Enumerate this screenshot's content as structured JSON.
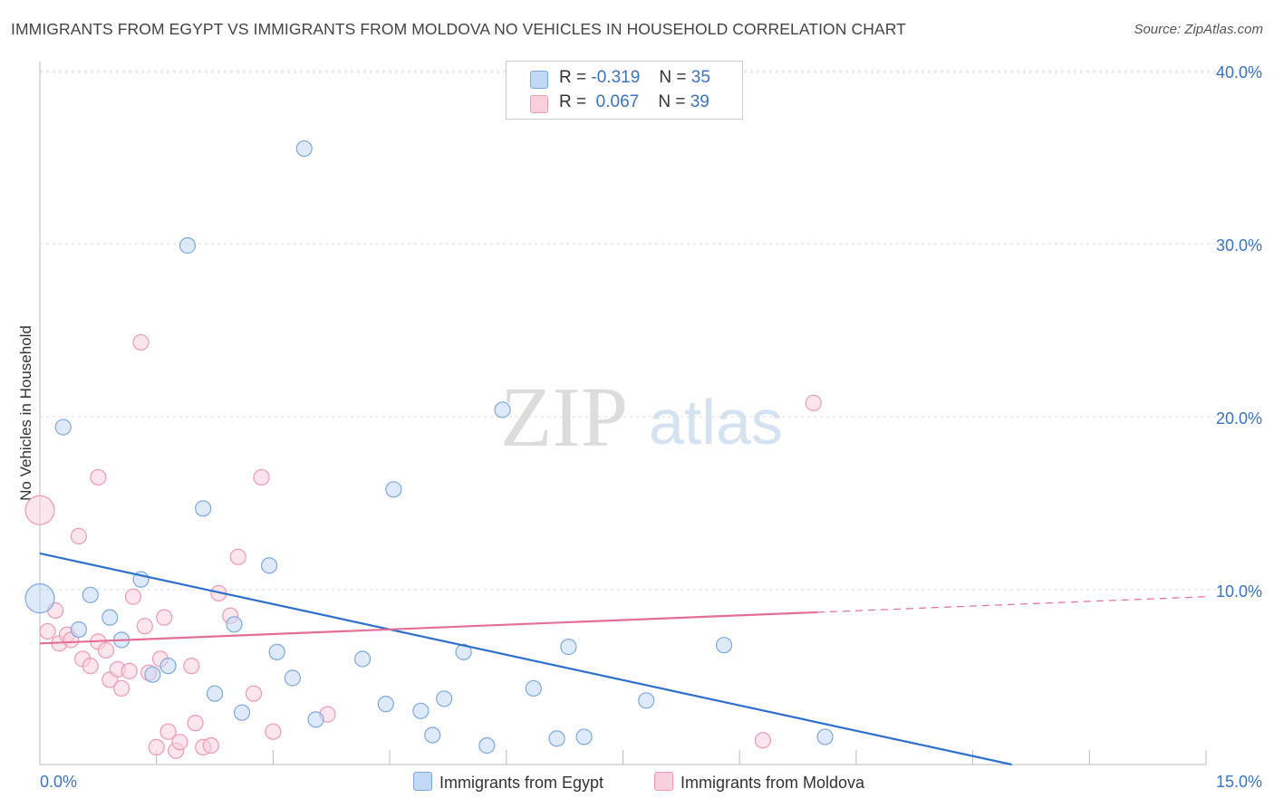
{
  "title": "IMMIGRANTS FROM EGYPT VS IMMIGRANTS FROM MOLDOVA NO VEHICLES IN HOUSEHOLD CORRELATION CHART",
  "source": "Source: ZipAtlas.com",
  "watermark": {
    "zip": "ZIP",
    "atlas": "atlas"
  },
  "legend": {
    "rows": [
      {
        "r_label": "R =",
        "r_value": "-0.319",
        "n_label": "N =",
        "n_value": "35",
        "color": "#b8d2f5",
        "border": "#7ea8e0"
      },
      {
        "r_label": "R =",
        "r_value": "0.067",
        "n_label": "N =",
        "n_value": "39",
        "color": "#f9c6d5",
        "border": "#ef9ab3"
      }
    ]
  },
  "bottom_legend": {
    "egypt": "Immigrants from Egypt",
    "moldova": "Immigrants from Moldova"
  },
  "chart_data": {
    "type": "scatter",
    "title": "IMMIGRANTS FROM EGYPT VS IMMIGRANTS FROM MOLDOVA NO VEHICLES IN HOUSEHOLD CORRELATION CHART",
    "xlabel": "",
    "ylabel": "No Vehicles in Household",
    "xlim": [
      0,
      15
    ],
    "ylim": [
      0,
      40
    ],
    "x_ticks": [
      "0.0%",
      "15.0%"
    ],
    "y_ticks": [
      {
        "value": 10,
        "label": "10.0%"
      },
      {
        "value": 20,
        "label": "20.0%"
      },
      {
        "value": 30,
        "label": "30.0%"
      },
      {
        "value": 40,
        "label": "40.0%"
      }
    ],
    "grid": true,
    "colors": {
      "egypt_fill": "#c2d8f5",
      "egypt_stroke": "#7ea8e0",
      "egypt_line": "#2f6fce",
      "moldova_fill": "#fad0dd",
      "moldova_stroke": "#ef9ab3",
      "moldova_line": "#e46f95",
      "tick_text": "#3b73c4"
    },
    "series": [
      {
        "name": "Immigrants from Egypt",
        "points": [
          {
            "x": 0.0,
            "y": 9.6,
            "big": true
          },
          {
            "x": 0.3,
            "y": 19.5
          },
          {
            "x": 0.5,
            "y": 7.8
          },
          {
            "x": 0.65,
            "y": 9.8
          },
          {
            "x": 0.9,
            "y": 8.5
          },
          {
            "x": 1.05,
            "y": 7.2
          },
          {
            "x": 1.3,
            "y": 10.7
          },
          {
            "x": 1.45,
            "y": 5.2
          },
          {
            "x": 1.65,
            "y": 5.7
          },
          {
            "x": 1.9,
            "y": 30.0
          },
          {
            "x": 2.1,
            "y": 14.8
          },
          {
            "x": 2.25,
            "y": 4.1
          },
          {
            "x": 2.5,
            "y": 8.1
          },
          {
            "x": 2.6,
            "y": 3.0
          },
          {
            "x": 2.95,
            "y": 11.5
          },
          {
            "x": 3.05,
            "y": 6.5
          },
          {
            "x": 3.25,
            "y": 5.0
          },
          {
            "x": 3.4,
            "y": 35.6
          },
          {
            "x": 3.55,
            "y": 2.6
          },
          {
            "x": 4.15,
            "y": 6.1
          },
          {
            "x": 4.45,
            "y": 3.5
          },
          {
            "x": 4.55,
            "y": 15.9
          },
          {
            "x": 4.9,
            "y": 3.1
          },
          {
            "x": 5.05,
            "y": 1.7
          },
          {
            "x": 5.2,
            "y": 3.8
          },
          {
            "x": 5.45,
            "y": 6.5
          },
          {
            "x": 5.75,
            "y": 1.1
          },
          {
            "x": 5.95,
            "y": 20.5
          },
          {
            "x": 6.35,
            "y": 4.4
          },
          {
            "x": 6.65,
            "y": 1.5
          },
          {
            "x": 6.8,
            "y": 6.8
          },
          {
            "x": 7.0,
            "y": 1.6
          },
          {
            "x": 7.8,
            "y": 3.7
          },
          {
            "x": 8.8,
            "y": 6.9
          },
          {
            "x": 10.1,
            "y": 1.6
          }
        ],
        "trend": {
          "x0": 0.0,
          "y0": 12.2,
          "x1": 12.5,
          "y1": 0.0,
          "solid_to": 12.5
        }
      },
      {
        "name": "Immigrants from Moldova",
        "points": [
          {
            "x": 0.0,
            "y": 14.7,
            "big": true
          },
          {
            "x": 0.1,
            "y": 7.7
          },
          {
            "x": 0.2,
            "y": 8.9
          },
          {
            "x": 0.25,
            "y": 7.0
          },
          {
            "x": 0.35,
            "y": 7.5
          },
          {
            "x": 0.4,
            "y": 7.2
          },
          {
            "x": 0.5,
            "y": 13.2
          },
          {
            "x": 0.55,
            "y": 6.1
          },
          {
            "x": 0.65,
            "y": 5.7
          },
          {
            "x": 0.75,
            "y": 7.1
          },
          {
            "x": 0.75,
            "y": 16.6
          },
          {
            "x": 0.85,
            "y": 6.6
          },
          {
            "x": 0.9,
            "y": 4.9
          },
          {
            "x": 1.0,
            "y": 5.5
          },
          {
            "x": 1.05,
            "y": 4.4
          },
          {
            "x": 1.15,
            "y": 5.4
          },
          {
            "x": 1.2,
            "y": 9.7
          },
          {
            "x": 1.3,
            "y": 24.4
          },
          {
            "x": 1.35,
            "y": 8.0
          },
          {
            "x": 1.4,
            "y": 5.3
          },
          {
            "x": 1.5,
            "y": 1.0
          },
          {
            "x": 1.55,
            "y": 6.1
          },
          {
            "x": 1.6,
            "y": 8.5
          },
          {
            "x": 1.65,
            "y": 1.9
          },
          {
            "x": 1.75,
            "y": 0.8
          },
          {
            "x": 1.8,
            "y": 1.3
          },
          {
            "x": 1.95,
            "y": 5.7
          },
          {
            "x": 2.0,
            "y": 2.4
          },
          {
            "x": 2.1,
            "y": 1.0
          },
          {
            "x": 2.2,
            "y": 1.1
          },
          {
            "x": 2.3,
            "y": 9.9
          },
          {
            "x": 2.45,
            "y": 8.6
          },
          {
            "x": 2.55,
            "y": 12.0
          },
          {
            "x": 2.75,
            "y": 4.1
          },
          {
            "x": 2.85,
            "y": 16.6
          },
          {
            "x": 3.0,
            "y": 1.9
          },
          {
            "x": 3.7,
            "y": 2.9
          },
          {
            "x": 9.3,
            "y": 1.4
          },
          {
            "x": 9.95,
            "y": 20.9
          }
        ],
        "trend": {
          "x0": 0.0,
          "y0": 7.0,
          "x1": 15.0,
          "y1": 9.7,
          "solid_to": 10.0
        }
      }
    ]
  }
}
